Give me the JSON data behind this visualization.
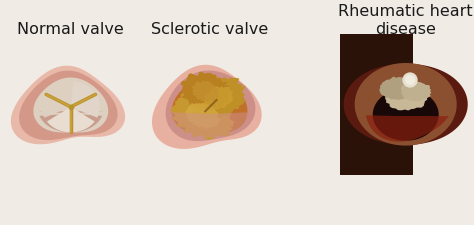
{
  "background_color": "#f0ebe5",
  "labels": [
    "Normal valve",
    "Sclerotic valve",
    "Rheumatic heart\ndisease"
  ],
  "label_fontsize": 11.5,
  "label_color": "#1a1a1a",
  "fig_width": 4.74,
  "fig_height": 2.25,
  "dpi": 100
}
